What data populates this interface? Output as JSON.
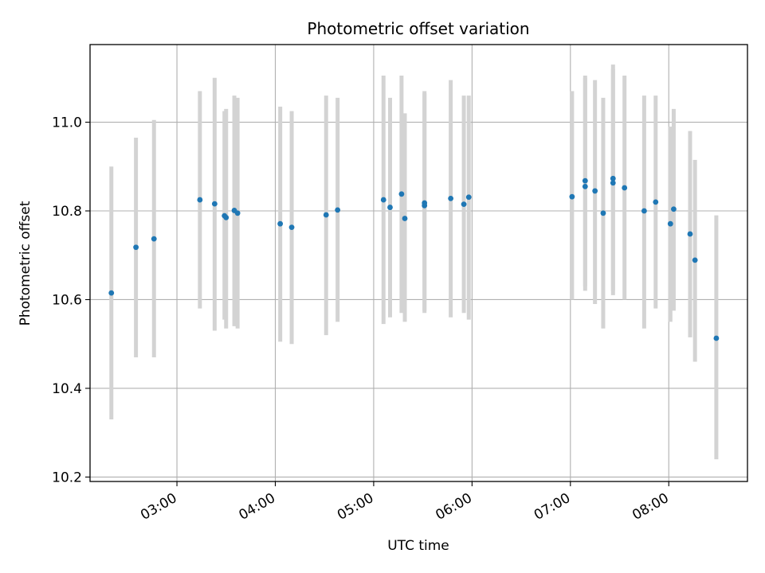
{
  "chart_data": {
    "type": "scatter",
    "title": "Photometric offset variation",
    "xlabel": "UTC time",
    "ylabel": "Photometric offset",
    "x_ticks": [
      "03:00",
      "04:00",
      "05:00",
      "06:00",
      "07:00",
      "08:00"
    ],
    "y_ticks": [
      "10.2",
      "10.4",
      "10.6",
      "10.8",
      "11.0"
    ],
    "xlim": [
      "02:07",
      "08:48"
    ],
    "ylim": [
      10.19,
      11.175
    ],
    "grid": true,
    "colors": {
      "point": "#1f77b4",
      "errorbar": "#d3d3d3",
      "grid": "#b0b0b0"
    },
    "points": [
      {
        "t": "02:20",
        "y": 10.615,
        "lo": 10.33,
        "hi": 10.9
      },
      {
        "t": "02:35",
        "y": 10.718,
        "lo": 10.47,
        "hi": 10.965
      },
      {
        "t": "02:46",
        "y": 10.737,
        "lo": 10.47,
        "hi": 11.005
      },
      {
        "t": "03:14",
        "y": 10.825,
        "lo": 10.58,
        "hi": 11.07
      },
      {
        "t": "03:23",
        "y": 10.816,
        "lo": 10.53,
        "hi": 11.1
      },
      {
        "t": "03:29",
        "y": 10.789,
        "lo": 10.555,
        "hi": 11.025
      },
      {
        "t": "03:30",
        "y": 10.785,
        "lo": 10.535,
        "hi": 11.03
      },
      {
        "t": "03:35",
        "y": 10.801,
        "lo": 10.54,
        "hi": 11.06
      },
      {
        "t": "03:37",
        "y": 10.795,
        "lo": 10.535,
        "hi": 11.055
      },
      {
        "t": "04:03",
        "y": 10.771,
        "lo": 10.505,
        "hi": 11.035
      },
      {
        "t": "04:10",
        "y": 10.763,
        "lo": 10.5,
        "hi": 11.025
      },
      {
        "t": "04:31",
        "y": 10.791,
        "lo": 10.52,
        "hi": 11.06
      },
      {
        "t": "04:38",
        "y": 10.802,
        "lo": 10.55,
        "hi": 11.055
      },
      {
        "t": "05:06",
        "y": 10.825,
        "lo": 10.545,
        "hi": 11.105
      },
      {
        "t": "05:10",
        "y": 10.808,
        "lo": 10.56,
        "hi": 11.055
      },
      {
        "t": "05:17",
        "y": 10.838,
        "lo": 10.57,
        "hi": 11.105
      },
      {
        "t": "05:19",
        "y": 10.783,
        "lo": 10.55,
        "hi": 11.02
      },
      {
        "t": "05:31",
        "y": 10.812,
        "lo": 10.575,
        "hi": 11.065
      },
      {
        "t": "05:31",
        "y": 10.818,
        "lo": 10.57,
        "hi": 11.07
      },
      {
        "t": "05:47",
        "y": 10.828,
        "lo": 10.56,
        "hi": 11.095
      },
      {
        "t": "05:55",
        "y": 10.815,
        "lo": 10.57,
        "hi": 11.06
      },
      {
        "t": "05:58",
        "y": 10.831,
        "lo": 10.555,
        "hi": 11.06
      },
      {
        "t": "07:01",
        "y": 10.832,
        "lo": 10.6,
        "hi": 11.07
      },
      {
        "t": "07:09",
        "y": 10.855,
        "lo": 10.62,
        "hi": 11.1
      },
      {
        "t": "07:09",
        "y": 10.868,
        "lo": 10.63,
        "hi": 11.105
      },
      {
        "t": "07:15",
        "y": 10.845,
        "lo": 10.59,
        "hi": 11.095
      },
      {
        "t": "07:20",
        "y": 10.795,
        "lo": 10.535,
        "hi": 11.055
      },
      {
        "t": "07:26",
        "y": 10.873,
        "lo": 10.62,
        "hi": 11.13
      },
      {
        "t": "07:26",
        "y": 10.863,
        "lo": 10.61,
        "hi": 11.12
      },
      {
        "t": "07:33",
        "y": 10.852,
        "lo": 10.6,
        "hi": 11.105
      },
      {
        "t": "07:45",
        "y": 10.8,
        "lo": 10.535,
        "hi": 11.06
      },
      {
        "t": "07:52",
        "y": 10.82,
        "lo": 10.58,
        "hi": 11.06
      },
      {
        "t": "08:01",
        "y": 10.771,
        "lo": 10.55,
        "hi": 10.99
      },
      {
        "t": "08:03",
        "y": 10.804,
        "lo": 10.575,
        "hi": 11.03
      },
      {
        "t": "08:13",
        "y": 10.748,
        "lo": 10.515,
        "hi": 10.98
      },
      {
        "t": "08:16",
        "y": 10.689,
        "lo": 10.46,
        "hi": 10.915
      },
      {
        "t": "08:29",
        "y": 10.513,
        "lo": 10.24,
        "hi": 10.79
      }
    ]
  }
}
